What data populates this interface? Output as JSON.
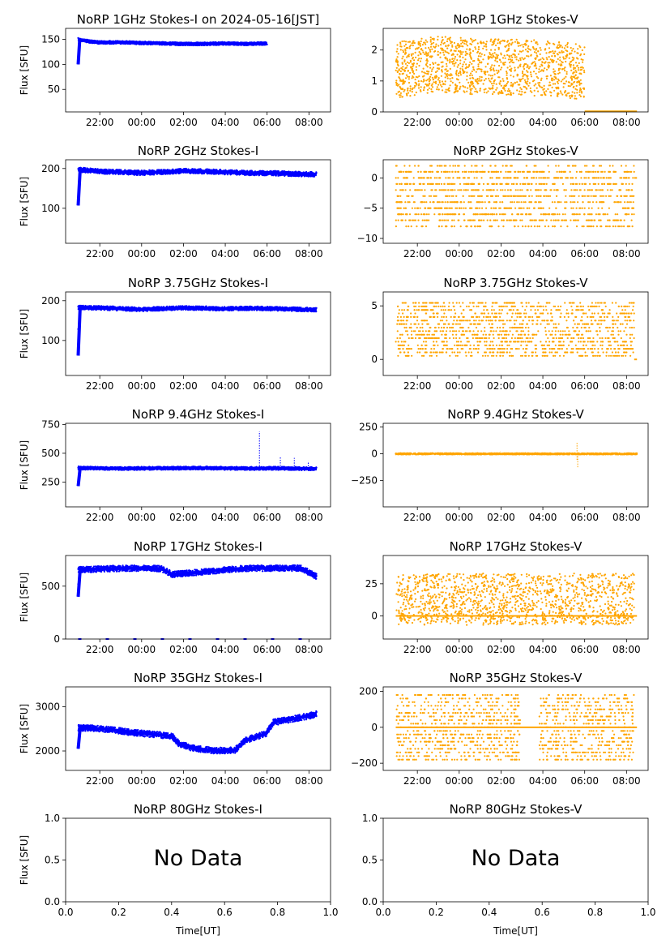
{
  "colors": {
    "stokes_i": "#0000ff",
    "stokes_v": "#ffa500"
  },
  "x_time_ticks": [
    "22:00",
    "00:00",
    "02:00",
    "04:00",
    "06:00",
    "08:00"
  ],
  "x_numeric_ticks": [
    "0.0",
    "0.2",
    "0.4",
    "0.6",
    "0.8",
    "1.0"
  ],
  "xlabel": "Time[UT]",
  "ylabel": "Flux [SFU]",
  "no_data_text": "No Data",
  "chart_data": [
    {
      "type": "scatter",
      "title": "NoRP 1GHz Stokes-I on 2024-05-16[JST]",
      "series": "I",
      "ylim": [
        5,
        172
      ],
      "yticks": [
        {
          "v": 50,
          "l": "50"
        },
        {
          "v": 100,
          "l": "100"
        },
        {
          "v": 150,
          "l": "150"
        }
      ],
      "x_range": [
        "20:58",
        "06:00"
      ],
      "level": [
        [
          0,
          100
        ],
        [
          0.1,
          153
        ],
        [
          1,
          150
        ],
        [
          20,
          147
        ],
        [
          60,
          144
        ],
        [
          120,
          144
        ],
        [
          180,
          143
        ],
        [
          240,
          142
        ],
        [
          300,
          141
        ],
        [
          360,
          141
        ],
        [
          420,
          142
        ],
        [
          480,
          141
        ],
        [
          541,
          142
        ]
      ],
      "spread": 3,
      "ylabel": true
    },
    {
      "type": "scatter",
      "title": "NoRP 1GHz Stokes-V",
      "series": "V",
      "ylim": [
        0,
        2.7
      ],
      "yticks": [
        {
          "v": 0,
          "l": "0"
        },
        {
          "v": 1,
          "l": "1"
        },
        {
          "v": 2,
          "l": "2"
        }
      ],
      "x_range": [
        "20:58",
        "06:00"
      ],
      "level": [
        [
          0,
          1.35
        ],
        [
          60,
          1.45
        ],
        [
          120,
          1.55
        ],
        [
          180,
          1.5
        ],
        [
          240,
          1.45
        ],
        [
          300,
          1.45
        ],
        [
          360,
          1.45
        ],
        [
          420,
          1.4
        ],
        [
          480,
          1.35
        ],
        [
          541,
          1.3
        ]
      ],
      "spread": 0.9,
      "baseline": {
        "value": 0.02,
        "x_range": [
          "06:00",
          "08:30"
        ]
      }
    },
    {
      "type": "scatter",
      "title": "NoRP 2GHz Stokes-I",
      "series": "I",
      "ylim": [
        12,
        222
      ],
      "yticks": [
        {
          "v": 100,
          "l": "100"
        },
        {
          "v": 200,
          "l": "200"
        }
      ],
      "x_range": [
        "20:58",
        "08:22"
      ],
      "level": [
        [
          0,
          107
        ],
        [
          0.1,
          198
        ],
        [
          1,
          197
        ],
        [
          60,
          193
        ],
        [
          120,
          191
        ],
        [
          180,
          189
        ],
        [
          240,
          191
        ],
        [
          300,
          194
        ],
        [
          360,
          193
        ],
        [
          420,
          191
        ],
        [
          480,
          189
        ],
        [
          560,
          188
        ],
        [
          684,
          185
        ]
      ],
      "spread": 6,
      "ylabel": true
    },
    {
      "type": "scatter",
      "title": "NoRP 2GHz Stokes-V",
      "series": "V",
      "ylim": [
        -10.8,
        3
      ],
      "yticks": [
        {
          "v": 0,
          "l": "0"
        },
        {
          "v": -5,
          "l": "−5"
        },
        {
          "v": -10,
          "l": "−10"
        }
      ],
      "x_range": [
        "20:58",
        "08:22"
      ],
      "level": [
        [
          0,
          -3
        ],
        [
          684,
          -3
        ]
      ],
      "spread": 5,
      "discrete": 1,
      "baseline": {
        "value": 0,
        "x_range": [
          "08:22",
          "08:30"
        ]
      }
    },
    {
      "type": "scatter",
      "title": "NoRP 3.75GHz Stokes-I",
      "series": "I",
      "ylim": [
        12,
        222
      ],
      "yticks": [
        {
          "v": 100,
          "l": "100"
        },
        {
          "v": 200,
          "l": "200"
        }
      ],
      "x_range": [
        "20:58",
        "08:22"
      ],
      "level": [
        [
          0,
          62
        ],
        [
          0.1,
          183
        ],
        [
          1,
          183
        ],
        [
          60,
          182
        ],
        [
          120,
          180
        ],
        [
          180,
          178
        ],
        [
          240,
          180
        ],
        [
          300,
          182
        ],
        [
          360,
          181
        ],
        [
          420,
          180
        ],
        [
          480,
          181
        ],
        [
          560,
          180
        ],
        [
          684,
          177
        ]
      ],
      "spread": 5,
      "ylabel": true
    },
    {
      "type": "scatter",
      "title": "NoRP 3.75GHz Stokes-V",
      "series": "V",
      "ylim": [
        -1.5,
        6.3
      ],
      "yticks": [
        {
          "v": 0,
          "l": "0"
        },
        {
          "v": 5,
          "l": "5"
        }
      ],
      "x_range": [
        "20:58",
        "08:22"
      ],
      "level": [
        [
          0,
          2.8
        ],
        [
          684,
          2.8
        ]
      ],
      "spread": 2.6,
      "discrete": 0.33,
      "baseline": {
        "value": 0,
        "x_range": [
          "08:22",
          "08:30"
        ]
      }
    },
    {
      "type": "scatter",
      "title": "NoRP 9.4GHz Stokes-I",
      "series": "I",
      "ylim": [
        35,
        760
      ],
      "yticks": [
        {
          "v": 250,
          "l": "250"
        },
        {
          "v": 500,
          "l": "500"
        },
        {
          "v": 750,
          "l": "750"
        }
      ],
      "x_range": [
        "20:58",
        "08:22"
      ],
      "level": [
        [
          0,
          215
        ],
        [
          0.1,
          372
        ],
        [
          1,
          372
        ],
        [
          120,
          368
        ],
        [
          240,
          370
        ],
        [
          360,
          372
        ],
        [
          480,
          368
        ],
        [
          560,
          370
        ],
        [
          684,
          365
        ]
      ],
      "spread": 14,
      "spikes": [
        [
          520,
          690
        ],
        [
          580,
          470
        ],
        [
          620,
          460
        ],
        [
          660,
          430
        ]
      ],
      "ylabel": true
    },
    {
      "type": "scatter",
      "title": "NoRP 9.4GHz Stokes-V",
      "series": "V",
      "ylim": [
        -495,
        285
      ],
      "yticks": [
        {
          "v": 250,
          "l": "250"
        },
        {
          "v": 0,
          "l": "0"
        },
        {
          "v": -250,
          "l": "−250"
        }
      ],
      "x_range": [
        "20:58",
        "08:30"
      ],
      "level": [
        [
          0,
          0
        ],
        [
          692,
          0
        ]
      ],
      "spread": 6,
      "spikes": [
        [
          520,
          110
        ],
        [
          520,
          -60
        ],
        [
          522,
          -130
        ],
        [
          300,
          25
        ],
        [
          600,
          20
        ]
      ]
    },
    {
      "type": "scatter",
      "title": "NoRP 17GHz Stokes-I",
      "series": "I",
      "ylim": [
        0,
        790
      ],
      "yticks": [
        {
          "v": 0,
          "l": "0"
        },
        {
          "v": 500,
          "l": "500"
        }
      ],
      "x_range": [
        "20:58",
        "08:22"
      ],
      "level": [
        [
          0,
          400
        ],
        [
          0.1,
          650
        ],
        [
          1,
          655
        ],
        [
          60,
          662
        ],
        [
          120,
          668
        ],
        [
          180,
          670
        ],
        [
          240,
          665
        ],
        [
          270,
          610
        ],
        [
          300,
          620
        ],
        [
          360,
          635
        ],
        [
          420,
          655
        ],
        [
          480,
          668
        ],
        [
          560,
          670
        ],
        [
          640,
          670
        ],
        [
          684,
          590
        ]
      ],
      "spread": 28,
      "baseline": {
        "value": 0,
        "x_range": [
          "20:58",
          "08:30"
        ],
        "dashed": true
      },
      "ylabel": true
    },
    {
      "type": "scatter",
      "title": "NoRP 17GHz Stokes-V",
      "series": "V",
      "ylim": [
        -18,
        47
      ],
      "yticks": [
        {
          "v": 0,
          "l": "0"
        },
        {
          "v": 25,
          "l": "25"
        }
      ],
      "x_range": [
        "21:00",
        "08:22"
      ],
      "level": [
        [
          0,
          13
        ],
        [
          682,
          13
        ]
      ],
      "spread": 20,
      "baseline": {
        "value": 0,
        "x_range": [
          "20:58",
          "08:30"
        ]
      }
    },
    {
      "type": "scatter",
      "title": "NoRP 35GHz Stokes-I",
      "series": "I",
      "ylim": [
        1560,
        3450
      ],
      "yticks": [
        {
          "v": 2000,
          "l": "2000"
        },
        {
          "v": 3000,
          "l": "3000"
        }
      ],
      "x_range": [
        "20:58",
        "08:22"
      ],
      "level": [
        [
          0,
          2050
        ],
        [
          0.1,
          2520
        ],
        [
          30,
          2520
        ],
        [
          90,
          2490
        ],
        [
          150,
          2420
        ],
        [
          210,
          2380
        ],
        [
          240,
          2360
        ],
        [
          270,
          2330
        ],
        [
          290,
          2160
        ],
        [
          330,
          2060
        ],
        [
          390,
          2010
        ],
        [
          420,
          2010
        ],
        [
          450,
          2020
        ],
        [
          480,
          2240
        ],
        [
          540,
          2400
        ],
        [
          560,
          2650
        ],
        [
          600,
          2700
        ],
        [
          640,
          2760
        ],
        [
          680,
          2820
        ],
        [
          700,
          2900
        ],
        [
          710,
          2050
        ]
      ],
      "spread": 70,
      "ylabel": true
    },
    {
      "type": "scatter",
      "title": "NoRP 35GHz Stokes-V",
      "series": "V",
      "ylim": [
        -240,
        225
      ],
      "yticks": [
        {
          "v": 200,
          "l": "200"
        },
        {
          "v": 0,
          "l": "0"
        },
        {
          "v": -200,
          "l": "−200"
        }
      ],
      "x_range": [
        "21:00",
        "08:22"
      ],
      "level": [
        [
          0,
          0
        ],
        [
          682,
          0
        ]
      ],
      "spread": 190,
      "discrete": 20,
      "gap": [
        "02:55",
        "03:50"
      ],
      "baseline": {
        "value": 0,
        "x_range": [
          "20:58",
          "08:30"
        ]
      }
    },
    {
      "type": "empty",
      "title": "NoRP 80GHz Stokes-I",
      "ylim": [
        0,
        1
      ],
      "yticks": [
        {
          "v": 0,
          "l": "0.0"
        },
        {
          "v": 0.5,
          "l": "0.5"
        },
        {
          "v": 1,
          "l": "1.0"
        }
      ],
      "ylabel": true,
      "xlabel": true
    },
    {
      "type": "empty",
      "title": "NoRP 80GHz Stokes-V",
      "ylim": [
        0,
        1
      ],
      "yticks": [
        {
          "v": 0,
          "l": "0.0"
        },
        {
          "v": 0.5,
          "l": "0.5"
        },
        {
          "v": 1,
          "l": "1.0"
        }
      ],
      "xlabel": true
    }
  ]
}
